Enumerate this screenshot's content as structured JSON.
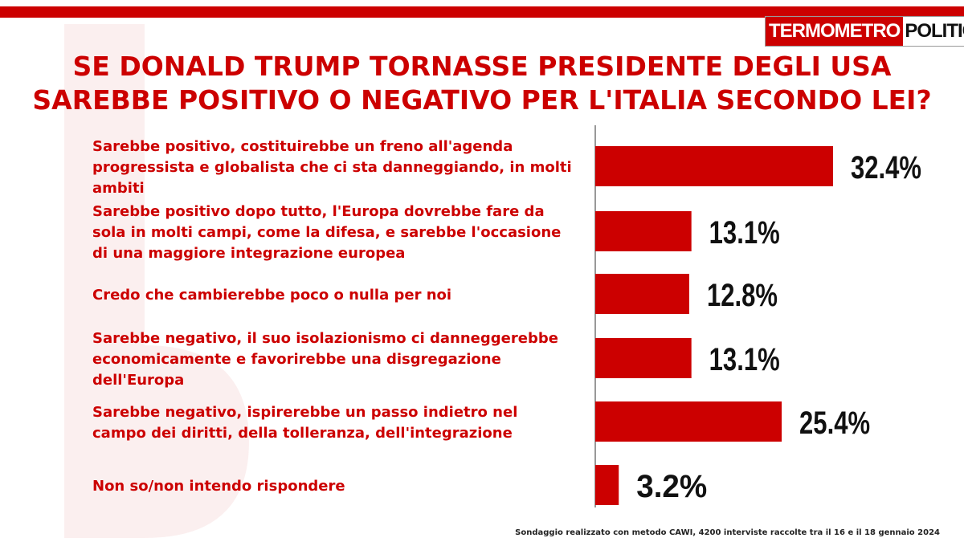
{
  "header": {
    "logo_part1": "TERMOMETRO",
    "logo_part2": "POLITICO",
    "title_line1": "SE DONALD TRUMP TORNASSE PRESIDENTE DEGLI USA",
    "title_line2": "SAREBBE POSITIVO O NEGATIVO PER L'ITALIA SECONDO LEI?"
  },
  "colors": {
    "accent": "#cc0000",
    "text": "#111111"
  },
  "chart_data": {
    "type": "bar",
    "orientation": "horizontal",
    "title": "SE DONALD TRUMP TORNASSE PRESIDENTE DEGLI USA SAREBBE POSITIVO O NEGATIVO PER L'ITALIA SECONDO LEI?",
    "xlim": [
      0,
      35
    ],
    "categories": [
      [
        "Sarebbe positivo, costituirebbe un freno all'agenda",
        "progressista e globalista che ci sta danneggiando, in molti",
        "ambiti"
      ],
      [
        "Sarebbe positivo dopo tutto, l'Europa dovrebbe fare da",
        "sola in molti campi, come la difesa, e sarebbe l'occasione",
        "di una maggiore integrazione europea"
      ],
      [
        "Credo che cambierebbe poco o nulla per noi"
      ],
      [
        "Sarebbe negativo, il suo isolazionismo ci danneggerebbe",
        "economicamente e favorirebbe una disgregazione",
        "dell'Europa"
      ],
      [
        "Sarebbe negativo, ispirerebbe un passo indietro nel",
        "campo dei diritti, della tolleranza, dell'integrazione"
      ],
      [
        "Non so/non intendo rispondere"
      ]
    ],
    "values": [
      32.4,
      13.1,
      12.8,
      13.1,
      25.4,
      3.2
    ],
    "value_labels": [
      "32.4%",
      "13.1%",
      "12.8%",
      "13.1%",
      "25.4%",
      "3.2%"
    ]
  },
  "footnote": "Sondaggio realizzato con metodo CAWI, 4200 interviste raccolte tra il 16 e il 18 gennaio 2024"
}
